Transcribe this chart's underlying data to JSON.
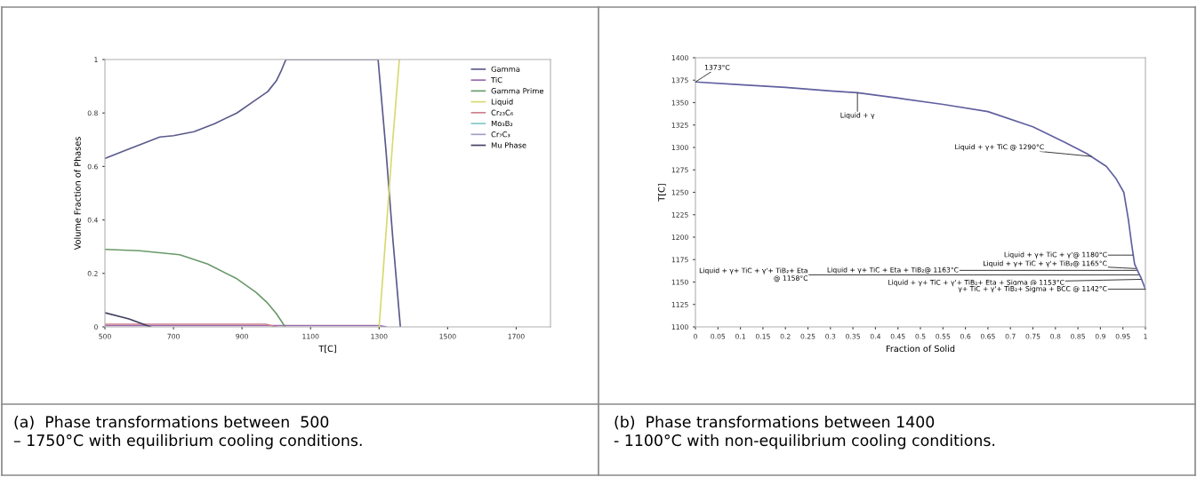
{
  "chart_data": [
    {
      "type": "line",
      "xlabel": "T[C]",
      "ylabel": "Volume Fraction of Phases",
      "xlim": [
        500,
        1800
      ],
      "ylim": [
        0,
        1
      ],
      "xticks": [
        500,
        700,
        900,
        1100,
        1300,
        1500,
        1700
      ],
      "yticks": [
        0,
        0.2,
        0.4,
        0.6,
        0.8,
        1
      ],
      "grid": false,
      "legend": "top right",
      "marker": "none",
      "line_style": "solid",
      "series": [
        {
          "name": "Gamma",
          "color": "#5a5a8c",
          "x": [
            500,
            560,
            620,
            660,
            700,
            760,
            820,
            885,
            930,
            975,
            1000,
            1015,
            1028,
            1297,
            1320,
            1340,
            1362
          ],
          "values": [
            0.63,
            0.66,
            0.69,
            0.71,
            0.715,
            0.73,
            0.76,
            0.8,
            0.84,
            0.88,
            0.92,
            0.96,
            1.0,
            1.0,
            0.66,
            0.33,
            0
          ]
        },
        {
          "name": "TiC",
          "color": "#9b6bb0",
          "x": [
            500,
            1300,
            1320
          ],
          "values": [
            0.005,
            0.005,
            0
          ]
        },
        {
          "name": "Gamma Prime",
          "color": "#6a9a6a",
          "x": [
            500,
            600,
            718,
            800,
            885,
            940,
            974,
            1000,
            1026
          ],
          "values": [
            0.29,
            0.285,
            0.27,
            0.235,
            0.18,
            0.13,
            0.09,
            0.05,
            0
          ]
        },
        {
          "name": "Liquid",
          "color": "#d8d870",
          "x": [
            1300,
            1320,
            1340,
            1359
          ],
          "values": [
            0,
            0.35,
            0.7,
            1.0
          ]
        },
        {
          "name": "Cr₂₃C₆",
          "color": "#d08090",
          "x": [
            500,
            970,
            1000
          ],
          "values": [
            0.01,
            0.01,
            0
          ]
        },
        {
          "name": "Mo₃B₂",
          "color": "#80c8c8"
        },
        {
          "name": "Cr₇C₃",
          "color": "#a0a0c8"
        },
        {
          "name": "Mu Phase",
          "color": "#404060",
          "x": [
            500,
            570,
            633
          ],
          "values": [
            0.053,
            0.03,
            0
          ]
        }
      ],
      "annotations": [
        "(a)  Phase transformations between  500\n– 1750°C with equilibrium cooling conditions."
      ]
    },
    {
      "type": "line",
      "xlabel": "Fraction of Solid",
      "ylabel": "T[C]",
      "xlim": [
        0,
        1
      ],
      "ylim": [
        1100,
        1400
      ],
      "xticks": [
        0,
        0.05,
        0.1,
        0.15,
        0.2,
        0.25,
        0.3,
        0.35,
        0.4,
        0.45,
        0.5,
        0.55,
        0.6,
        0.65,
        0.7,
        0.75,
        0.8,
        0.85,
        0.9,
        0.95,
        1
      ],
      "yticks": [
        1100,
        1125,
        1150,
        1175,
        1200,
        1225,
        1250,
        1275,
        1300,
        1325,
        1350,
        1375,
        1400
      ],
      "grid": false,
      "marker": "none",
      "line_style": "solid",
      "series": [
        {
          "color": "#6060a0",
          "x": [
            0,
            0.1,
            0.2,
            0.3,
            0.36,
            0.45,
            0.55,
            0.65,
            0.75,
            0.82,
            0.87,
            0.913,
            0.935,
            0.952,
            0.962,
            0.97,
            0.976,
            0.985,
            0.99,
            1
          ],
          "values": [
            1373,
            1370,
            1367,
            1363,
            1361,
            1355,
            1348,
            1340,
            1323,
            1306,
            1293,
            1279,
            1265,
            1250,
            1220,
            1190,
            1170,
            1160,
            1155,
            1142
          ]
        }
      ],
      "annotations": [
        {
          "text": "1373°C",
          "x": 0,
          "y": 1373
        },
        {
          "text": "Liquid + γ",
          "x": 0.36,
          "y": 1361
        },
        {
          "text": "Liquid + γ+ TiC @ 1290°C",
          "x": 0.88,
          "y": 1290
        },
        {
          "text": "Liquid + γ+ TiC + γ'@ 1180°C",
          "x": 0.972,
          "y": 1180
        },
        {
          "text": "Liquid + γ+ TiC + γ'+ TiB₂@ 1165°C",
          "x": 0.978,
          "y": 1165
        },
        {
          "text": "Liquid + γ+ TiC + Eta + TiB₂@ 1163°C",
          "x": 0.98,
          "y": 1163
        },
        {
          "text": "Liquid + γ+ TiC + γ'+ TiB₂+ Eta + Sigma @ 1153°C",
          "x": 0.99,
          "y": 1153
        },
        {
          "text": "γ+ TiC + γ'+ TiB₂+ Sigma + BCC @ 1142°C",
          "x": 1,
          "y": 1142
        },
        {
          "text": "Liquid + γ+ TiC + γ'+ TiB₂+ Eta\n@ 1158°C",
          "x": 0.985,
          "y": 1158
        },
        "(b)  Phase transformations between 1400\n- 1100°C with non-equilibrium cooling conditions."
      ]
    }
  ]
}
